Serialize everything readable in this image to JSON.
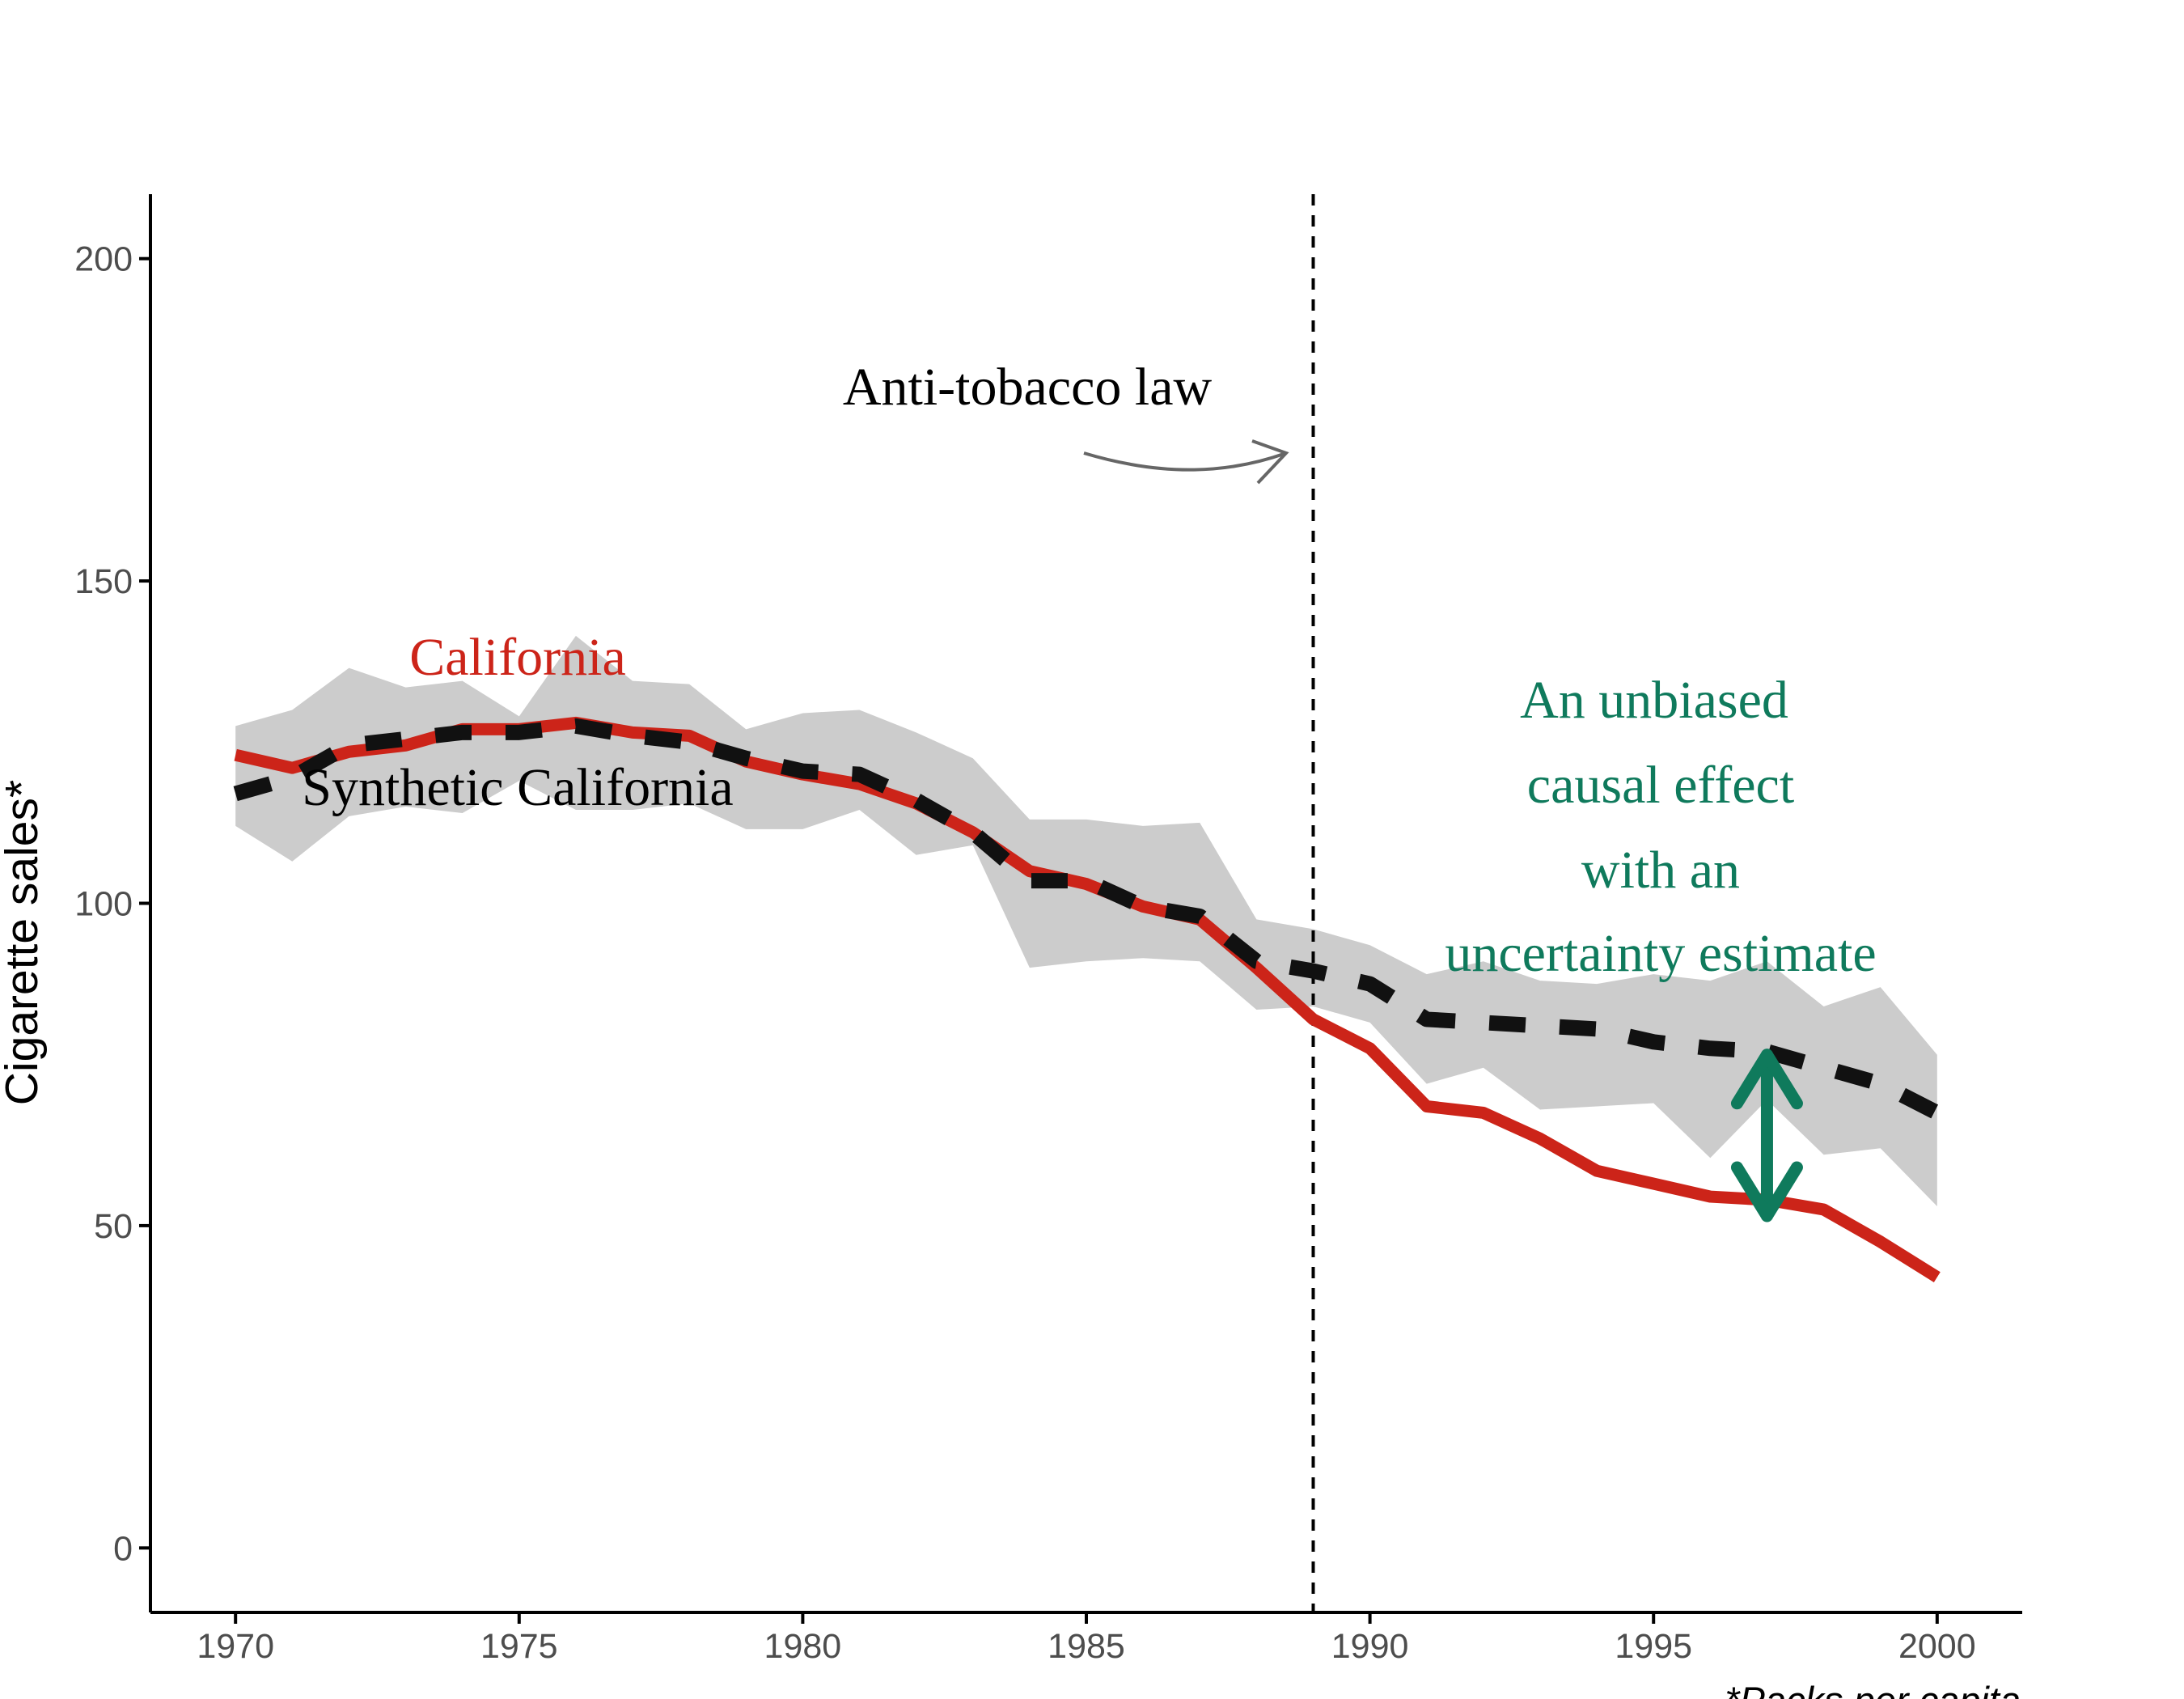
{
  "chart_data": {
    "type": "line",
    "title": "",
    "xlabel": "",
    "ylabel": "Cigarette sales*",
    "caption": "*Packs per capita",
    "xlim": [
      1968.5,
      2001.5
    ],
    "ylim": [
      -10,
      210
    ],
    "x_ticks": [
      1970,
      1975,
      1980,
      1985,
      1990,
      1995,
      2000
    ],
    "y_ticks": [
      0,
      50,
      100,
      150,
      200
    ],
    "grid": false,
    "treatment_year": 1989,
    "x": [
      1970,
      1971,
      1972,
      1973,
      1974,
      1975,
      1976,
      1977,
      1978,
      1979,
      1980,
      1981,
      1982,
      1983,
      1984,
      1985,
      1986,
      1987,
      1988,
      1989,
      1990,
      1991,
      1992,
      1993,
      1994,
      1995,
      1996,
      1997,
      1998,
      1999,
      2000
    ],
    "series": [
      {
        "name": "California",
        "color": "#CC2419",
        "style": "solid",
        "values": [
          123.0,
          121.0,
          123.5,
          124.5,
          127.0,
          127.0,
          128.0,
          126.5,
          126.0,
          122.0,
          120.0,
          118.5,
          115.5,
          111.0,
          105.0,
          103.0,
          99.5,
          97.5,
          90.0,
          82.0,
          77.5,
          68.5,
          67.5,
          63.5,
          58.5,
          56.5,
          54.5,
          54.0,
          52.5,
          47.5,
          42.0
        ]
      },
      {
        "name": "Synthetic California",
        "color": "#111111",
        "style": "dashed",
        "values": [
          117.0,
          119.5,
          124.5,
          125.5,
          126.5,
          126.5,
          127.5,
          126.0,
          125.0,
          122.5,
          120.5,
          120.0,
          116.0,
          111.0,
          103.5,
          103.5,
          99.5,
          98.0,
          91.0,
          89.5,
          87.5,
          82.0,
          81.5,
          81.0,
          80.5,
          78.5,
          77.5,
          77.0,
          74.5,
          72.0,
          67.5
        ]
      }
    ],
    "uncertainty_band": {
      "color": "#CCCCCC",
      "upper": [
        127.5,
        130.0,
        136.5,
        133.5,
        134.5,
        129.0,
        141.5,
        134.5,
        134.0,
        127.0,
        129.5,
        130.0,
        126.5,
        122.5,
        113.0,
        113.0,
        112.0,
        112.5,
        97.5,
        96.0,
        93.5,
        89.0,
        91.0,
        88.0,
        87.5,
        89.0,
        88.0,
        91.0,
        84.0,
        87.0,
        76.5
      ],
      "lower": [
        112.0,
        106.5,
        113.5,
        115.0,
        114.0,
        119.0,
        114.5,
        114.5,
        115.5,
        111.5,
        111.5,
        114.5,
        107.5,
        109.0,
        90.0,
        91.0,
        91.5,
        91.0,
        83.5,
        84.0,
        81.5,
        72.0,
        74.5,
        68.0,
        68.5,
        69.0,
        60.5,
        69.5,
        61.0,
        62.0,
        53.0
      ]
    },
    "annotations": {
      "law_label": "Anti-tobacco law",
      "california_label": "California",
      "synthetic_label": "Synthetic California",
      "effect_lines": [
        "An unbiased",
        "causal effect",
        "with an",
        "uncertainty estimate"
      ],
      "effect_color": "#0F7A5C",
      "effect_arrow": {
        "x": 1997,
        "y_top": 76.5,
        "y_bottom": 51.5
      }
    }
  }
}
